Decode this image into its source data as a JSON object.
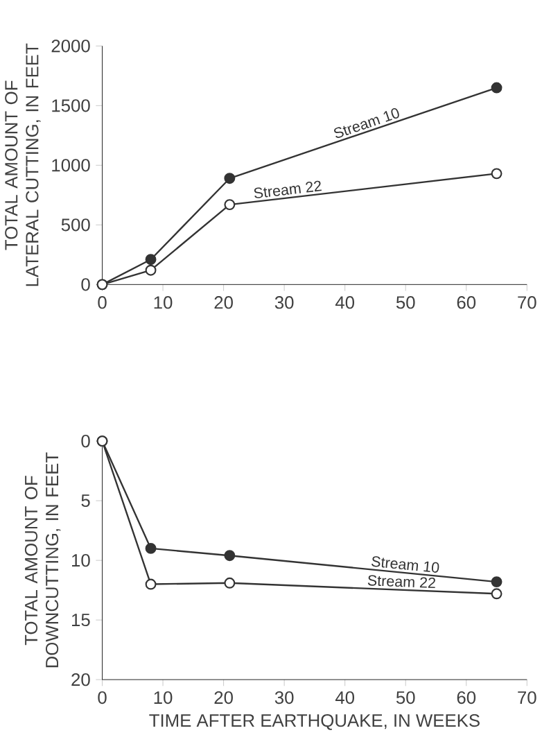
{
  "chart_data": [
    {
      "type": "line",
      "ylabel": "TOTAL AMOUNT OF LATERAL CUTTING, IN FEET",
      "x": [
        0,
        8,
        21,
        65
      ],
      "xlim": [
        0,
        70
      ],
      "xticks": [
        0,
        10,
        20,
        30,
        40,
        50,
        60,
        70
      ],
      "ylim": [
        0,
        2000
      ],
      "yticks": [
        0,
        500,
        1000,
        1500,
        2000
      ],
      "marker": "circle",
      "series": [
        {
          "name": "Stream 10",
          "color": "#333333",
          "colors": [
            "#333333",
            "#333333",
            "#333333",
            "#333333"
          ],
          "values": [
            0,
            210,
            890,
            1650
          ]
        },
        {
          "name": "Stream 22",
          "color": "#333333",
          "colors": [
            "#ffffff",
            "#ffffff",
            "#ffffff",
            "#ffffff"
          ],
          "values": [
            0,
            120,
            670,
            930
          ]
        }
      ]
    },
    {
      "type": "line",
      "xlabel": "TIME AFTER EARTHQUAKE, IN WEEKS",
      "ylabel": "TOTAL AMOUNT OF DOWNCUTTING, IN FEET",
      "x": [
        0,
        8,
        21,
        65
      ],
      "xlim": [
        0,
        70
      ],
      "xticks": [
        0,
        10,
        20,
        30,
        40,
        50,
        60,
        70
      ],
      "ylim": [
        20,
        0
      ],
      "yticks": [
        0,
        5,
        10,
        15,
        20
      ],
      "marker": "circle",
      "series": [
        {
          "name": "Stream 10",
          "color": "#333333",
          "colors": [
            "#333333",
            "#333333",
            "#333333",
            "#333333"
          ],
          "values": [
            0,
            9,
            9.6,
            11.8
          ]
        },
        {
          "name": "Stream 22",
          "color": "#333333",
          "colors": [
            "#ffffff",
            "#ffffff",
            "#ffffff",
            "#ffffff"
          ],
          "values": [
            0,
            12,
            11.9,
            12.8
          ]
        }
      ]
    }
  ]
}
